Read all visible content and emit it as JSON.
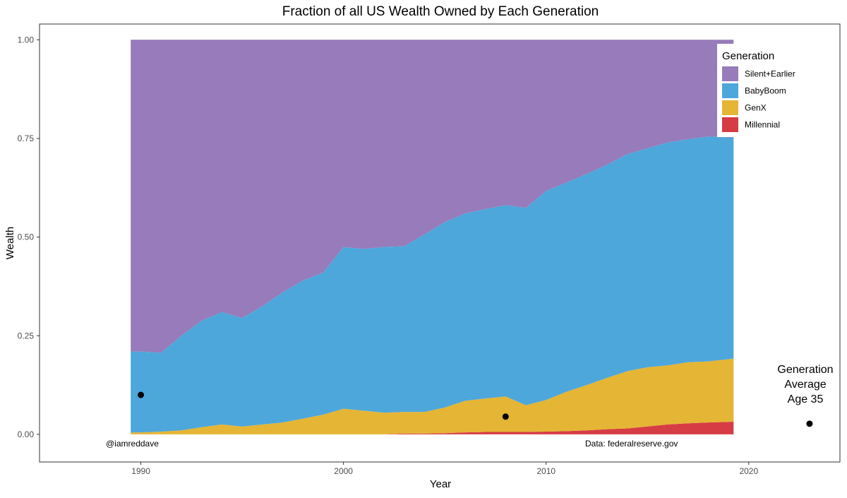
{
  "chart_data": {
    "type": "area",
    "stacked": true,
    "title": "Fraction of all US Wealth Owned by Each Generation",
    "xlabel": "Year",
    "ylabel": "Wealth",
    "xlim": [
      1985,
      2024.5
    ],
    "ylim": [
      -0.07,
      1.04
    ],
    "x_ticks": [
      1990,
      2000,
      2010,
      2020
    ],
    "y_ticks": [
      0.0,
      0.25,
      0.5,
      0.75,
      1.0
    ],
    "y_tick_labels": [
      "0.00",
      "0.25",
      "0.50",
      "0.75",
      "1.00"
    ],
    "grid": false,
    "legend": {
      "title": "Generation",
      "position": "top-right",
      "entries": [
        "Silent+Earlier",
        "BabyBoom",
        "GenX",
        "Millennial"
      ]
    },
    "colors": {
      "Silent+Earlier": "#977bba",
      "BabyBoom": "#4da7db",
      "GenX": "#e5b535",
      "Millennial": "#d63c44"
    },
    "x": [
      1989.5,
      1990.0,
      1991.0,
      1992.0,
      1993.0,
      1994.0,
      1995.0,
      1996.0,
      1997.0,
      1998.0,
      1999.0,
      2000.0,
      2001.0,
      2002.0,
      2003.0,
      2004.0,
      2005.0,
      2006.0,
      2007.0,
      2008.0,
      2009.0,
      2010.0,
      2011.0,
      2012.0,
      2013.0,
      2014.0,
      2015.0,
      2016.0,
      2017.0,
      2018.0,
      2019.25
    ],
    "series": [
      {
        "name": "Millennial",
        "values": [
          0,
          0,
          0,
          0,
          0,
          0,
          0,
          0,
          0,
          0,
          0,
          0,
          0,
          0,
          0.002,
          0.002,
          0.003,
          0.005,
          0.006,
          0.006,
          0.006,
          0.007,
          0.008,
          0.01,
          0.013,
          0.015,
          0.02,
          0.025,
          0.028,
          0.03,
          0.032
        ]
      },
      {
        "name": "GenX",
        "values": [
          0.005,
          0.005,
          0.007,
          0.01,
          0.018,
          0.025,
          0.02,
          0.025,
          0.03,
          0.04,
          0.05,
          0.065,
          0.06,
          0.055,
          0.055,
          0.055,
          0.065,
          0.08,
          0.085,
          0.09,
          0.068,
          0.08,
          0.1,
          0.115,
          0.13,
          0.145,
          0.15,
          0.15,
          0.155,
          0.155,
          0.16
        ]
      },
      {
        "name": "BabyBoom",
        "values": [
          0.205,
          0.205,
          0.2,
          0.24,
          0.27,
          0.285,
          0.275,
          0.3,
          0.33,
          0.35,
          0.36,
          0.41,
          0.41,
          0.42,
          0.42,
          0.45,
          0.47,
          0.475,
          0.48,
          0.485,
          0.5,
          0.53,
          0.53,
          0.535,
          0.54,
          0.55,
          0.555,
          0.565,
          0.565,
          0.57,
          0.56
        ]
      },
      {
        "name": "Silent+Earlier",
        "values": [
          0.79,
          0.79,
          0.793,
          0.75,
          0.712,
          0.69,
          0.705,
          0.675,
          0.64,
          0.61,
          0.59,
          0.525,
          0.53,
          0.525,
          0.523,
          0.493,
          0.462,
          0.44,
          0.429,
          0.419,
          0.426,
          0.383,
          0.362,
          0.34,
          0.317,
          0.29,
          0.275,
          0.26,
          0.252,
          0.245,
          0.248
        ]
      }
    ],
    "average_age_35_points": [
      {
        "generation": "Silent+Earlier",
        "x": 1990.0,
        "y": 0.1
      },
      {
        "generation": "BabyBoom",
        "x": 2008.0,
        "y": 0.045
      },
      {
        "generation": "GenX",
        "x": 2023.0,
        "y": 0.027
      }
    ],
    "annotations": {
      "point_label": "Generation\nAverage\nAge 35",
      "credit": "@iamreddave",
      "source": "Data: federalreserve.gov"
    }
  }
}
